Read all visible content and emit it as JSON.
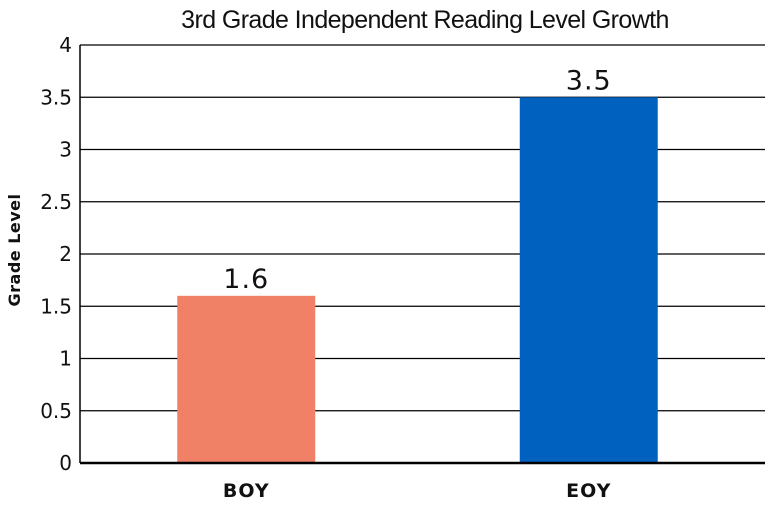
{
  "chart_data": {
    "type": "bar",
    "title": "3rd Grade Independent Reading Level Growth",
    "xlabel": "",
    "ylabel": "Grade Level",
    "categories": [
      "BOY",
      "EOY"
    ],
    "values": [
      1.6,
      3.5
    ],
    "data_labels": [
      "1.6",
      "3.5"
    ],
    "bar_colors": [
      "#f08066",
      "#0061bf"
    ],
    "ylim": [
      0,
      4
    ],
    "yticks": [
      0,
      0.5,
      1,
      1.5,
      2,
      2.5,
      3,
      3.5,
      4
    ],
    "ytick_labels": [
      "0",
      "0.5",
      "1",
      "1.5",
      "2",
      "2.5",
      "3",
      "3.5",
      "4"
    ],
    "grid": true,
    "legend": "none"
  }
}
